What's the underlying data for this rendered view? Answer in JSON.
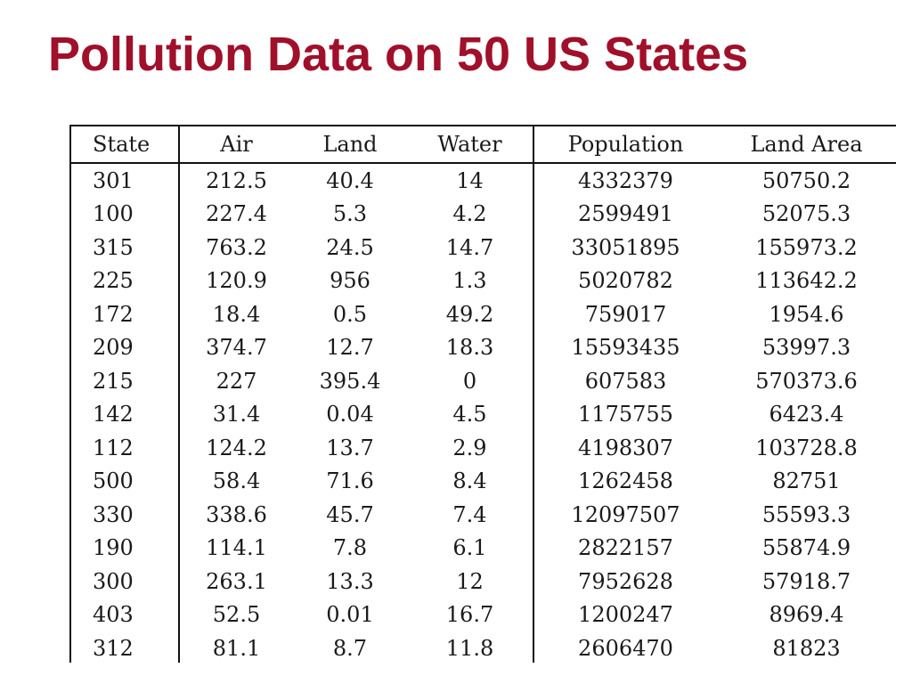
{
  "title": "Pollution Data on 50 US States",
  "table": {
    "headers": [
      "State",
      "Air",
      "Land",
      "Water",
      "Population",
      "Land Area"
    ],
    "rows": [
      [
        "301",
        "212.5",
        "40.4",
        "14",
        "4332379",
        "50750.2"
      ],
      [
        "100",
        "227.4",
        "5.3",
        "4.2",
        "2599491",
        "52075.3"
      ],
      [
        "315",
        "763.2",
        "24.5",
        "14.7",
        "33051895",
        "155973.2"
      ],
      [
        "225",
        "120.9",
        "956",
        "1.3",
        "5020782",
        "113642.2"
      ],
      [
        "172",
        "18.4",
        "0.5",
        "49.2",
        "759017",
        "1954.6"
      ],
      [
        "209",
        "374.7",
        "12.7",
        "18.3",
        "15593435",
        "53997.3"
      ],
      [
        "215",
        "227",
        "395.4",
        "0",
        "607583",
        "570373.6"
      ],
      [
        "142",
        "31.4",
        "0.04",
        "4.5",
        "1175755",
        "6423.4"
      ],
      [
        "112",
        "124.2",
        "13.7",
        "2.9",
        "4198307",
        "103728.8"
      ],
      [
        "500",
        "58.4",
        "71.6",
        "8.4",
        "1262458",
        "82751"
      ],
      [
        "330",
        "338.6",
        "45.7",
        "7.4",
        "12097507",
        "55593.3"
      ],
      [
        "190",
        "114.1",
        "7.8",
        "6.1",
        "2822157",
        "55874.9"
      ],
      [
        "300",
        "263.1",
        "13.3",
        "12",
        "7952628",
        "57918.7"
      ],
      [
        "403",
        "52.5",
        "0.01",
        "16.7",
        "1200247",
        "8969.4"
      ],
      [
        "312",
        "81.1",
        "8.7",
        "11.8",
        "2606470",
        "81823"
      ]
    ]
  },
  "colors": {
    "title": "#a0102a",
    "text": "#1a1a1a",
    "rule": "#111111"
  }
}
